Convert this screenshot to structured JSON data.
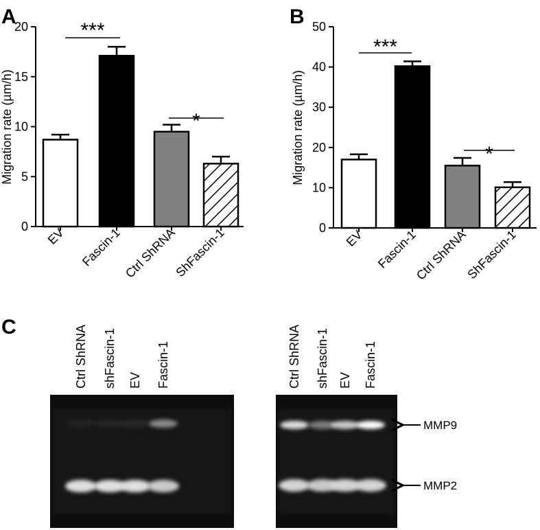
{
  "panels": {
    "a": "A",
    "b": "B",
    "c": "C"
  },
  "chart_data": [
    {
      "type": "bar",
      "panel": "A",
      "categories": [
        "EV",
        "Fascin-1",
        "Ctrl ShRNA",
        "ShFascin-1"
      ],
      "values": [
        8.7,
        17.1,
        9.5,
        6.3
      ],
      "errors": [
        0.5,
        0.9,
        0.7,
        0.7
      ],
      "fills": [
        "white",
        "black",
        "gray",
        "hatched"
      ],
      "ylabel": "Migration rate (µm/h)",
      "ylim": [
        0,
        20
      ],
      "yticks": [
        0,
        5,
        10,
        15,
        20
      ],
      "significance": [
        {
          "between": [
            "EV",
            "Fascin-1"
          ],
          "label": "***"
        },
        {
          "between": [
            "Ctrl ShRNA",
            "ShFascin-1"
          ],
          "label": "*"
        }
      ]
    },
    {
      "type": "bar",
      "panel": "B",
      "categories": [
        "EV",
        "Fascin-1",
        "Ctrl ShRNA",
        "ShFascin-1"
      ],
      "values": [
        17.0,
        40.2,
        15.5,
        10.1
      ],
      "errors": [
        1.3,
        1.2,
        1.9,
        1.3
      ],
      "fills": [
        "white",
        "black",
        "gray",
        "hatched"
      ],
      "ylabel": "Migration rate (µm/h)",
      "ylim": [
        0,
        50
      ],
      "yticks": [
        0,
        10,
        20,
        30,
        40,
        50
      ],
      "significance": [
        {
          "between": [
            "EV",
            "Fascin-1"
          ],
          "label": "***"
        },
        {
          "between": [
            "Ctrl ShRNA",
            "ShFascin-1"
          ],
          "label": "*"
        }
      ]
    }
  ],
  "gels": {
    "left": {
      "lanes": [
        "Ctrl ShRNA",
        "shFascin-1",
        "EV",
        "Fascin-1"
      ],
      "mmp9_intensity": [
        0.08,
        0.1,
        0.12,
        0.55
      ],
      "mmp2_intensity": [
        0.85,
        0.85,
        0.85,
        0.75
      ]
    },
    "right": {
      "lanes": [
        "Ctrl ShRNA",
        "shFascin-1",
        "EV",
        "Fascin-1"
      ],
      "mmp9_intensity": [
        0.85,
        0.5,
        0.75,
        1.0
      ],
      "mmp2_intensity": [
        0.8,
        0.75,
        0.8,
        0.8
      ],
      "band_labels": [
        "MMP9",
        "MMP2"
      ]
    }
  },
  "colors": {
    "black": "#000000",
    "gray": "#808080",
    "white": "#ffffff",
    "gel_bg": "#0e0e0e"
  }
}
